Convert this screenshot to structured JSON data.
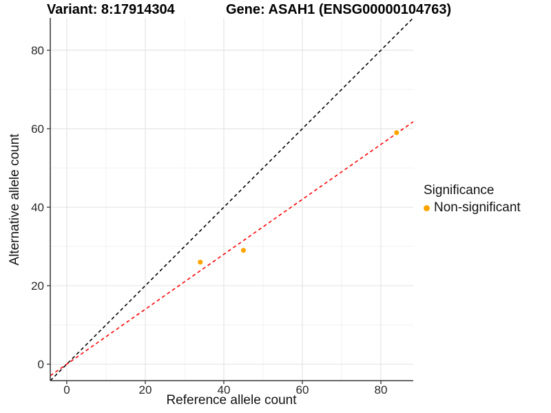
{
  "titles": {
    "left": "Variant: 8:17914304",
    "right": "Gene: ASAH1 (ENSG00000104763)"
  },
  "chart_data": {
    "type": "scatter",
    "xlabel": "Reference allele count",
    "ylabel": "Alternative allele count",
    "xlim": [
      -4.2,
      88.25
    ],
    "ylim": [
      -4.2,
      88.25
    ],
    "x_ticks": [
      0,
      20,
      40,
      60,
      80
    ],
    "y_ticks": [
      0,
      20,
      40,
      60,
      80
    ],
    "x_minor": [
      10,
      30,
      50,
      70
    ],
    "y_minor": [
      10,
      30,
      50,
      70
    ],
    "grid": true,
    "points": [
      {
        "x": 34,
        "y": 26
      },
      {
        "x": 45,
        "y": 29
      },
      {
        "x": 84,
        "y": 59
      }
    ],
    "lines": [
      {
        "name": "identity-line",
        "slope": 1.0,
        "intercept": 0,
        "color": "#000000",
        "dashed": true
      },
      {
        "name": "fit-line",
        "slope": 0.7,
        "intercept": 0,
        "color": "#FF0000",
        "dashed": true
      }
    ],
    "legend": {
      "title": "Significance",
      "position": "right",
      "entries": [
        {
          "label": "Non-significant",
          "color": "#FFA500"
        }
      ]
    },
    "style": {
      "point_color": "#FFA500",
      "grid_major": "#E4E4E4",
      "grid_minor": "#F2F2F2",
      "axis_line": "#333333",
      "tick_color": "#333333"
    }
  }
}
